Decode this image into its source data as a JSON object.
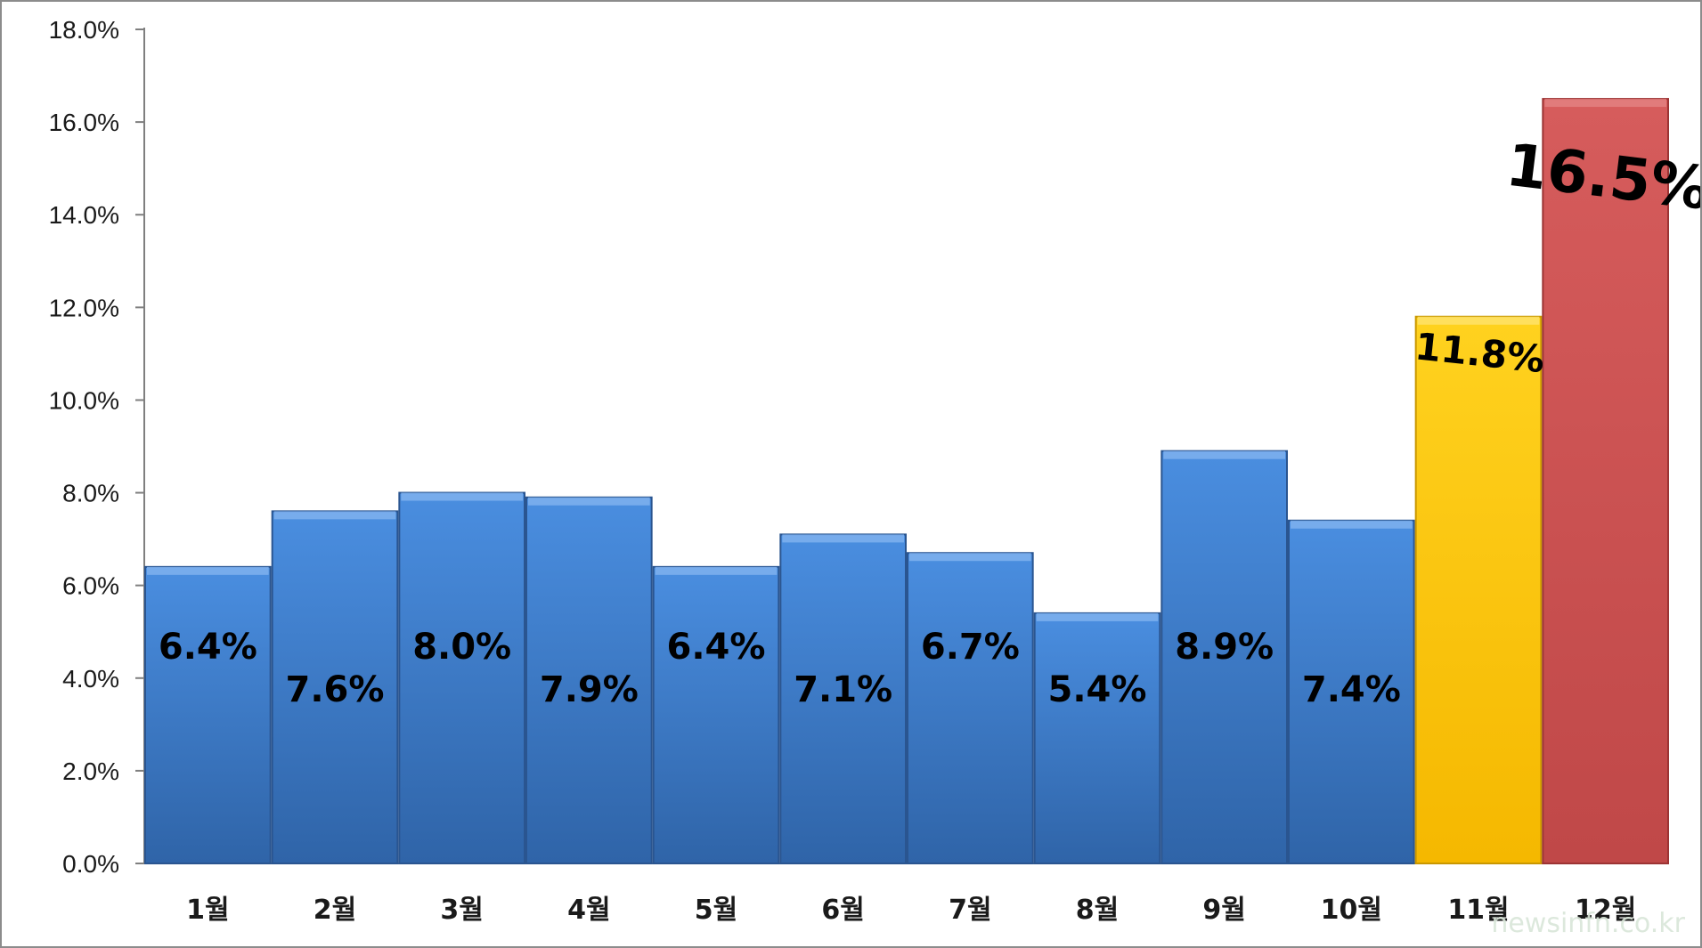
{
  "chart_data": {
    "type": "bar",
    "title": "",
    "xlabel": "",
    "ylabel": "",
    "categories": [
      "1월",
      "2월",
      "3월",
      "4월",
      "5월",
      "6월",
      "7월",
      "8월",
      "9월",
      "10월",
      "11월",
      "12월"
    ],
    "values": [
      6.4,
      7.6,
      8.0,
      7.9,
      6.4,
      7.1,
      6.7,
      5.4,
      8.9,
      7.4,
      11.8,
      16.5
    ],
    "data_labels": [
      "6.4%",
      "7.6%",
      "8.0%",
      "7.9%",
      "6.4%",
      "7.1%",
      "6.7%",
      "5.4%",
      "8.9%",
      "7.4%",
      "11.8%",
      "16.5%"
    ],
    "yticks": [
      "0.0%",
      "2.0%",
      "4.0%",
      "6.0%",
      "8.0%",
      "10.0%",
      "12.0%",
      "14.0%",
      "16.0%",
      "18.0%"
    ],
    "ylim": [
      0,
      18
    ],
    "grid": false,
    "legend": "none",
    "colors": [
      "#3d7fd1",
      "#3d7fd1",
      "#3d7fd1",
      "#3d7fd1",
      "#3d7fd1",
      "#3d7fd1",
      "#3d7fd1",
      "#3d7fd1",
      "#3d7fd1",
      "#3d7fd1",
      "#ffc60b",
      "#cf5555"
    ]
  },
  "watermark": "newsinfn.co.kr"
}
